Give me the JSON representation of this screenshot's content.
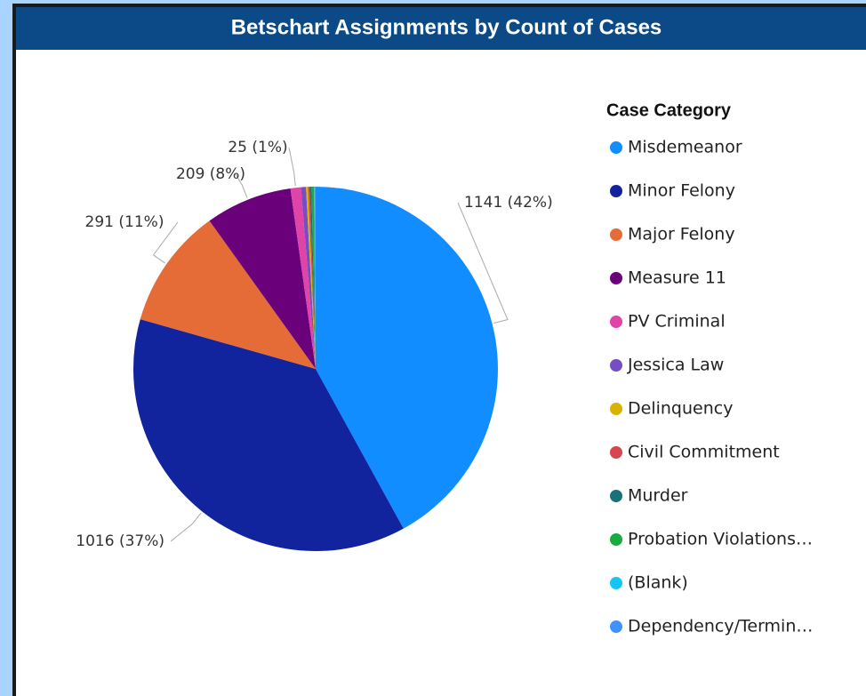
{
  "chart_data": {
    "type": "pie",
    "title": "Betschart Assignments by Count of Cases",
    "legend_title": "Case Category",
    "legend": "right",
    "categories": [
      "Misdemeanor",
      "Minor Felony",
      "Major Felony",
      "Measure 11",
      "PV Criminal",
      "Jessica Law",
      "Delinquency",
      "Civil Commitment",
      "Murder",
      "Probation Violations…",
      "(Blank)",
      "Dependency/Termin…"
    ],
    "values": [
      1141,
      1016,
      291,
      209,
      25,
      12,
      5,
      4,
      4,
      6,
      2,
      2
    ],
    "value_labels": [
      "1141 (42%)",
      "1016 (37%)",
      "291 (11%)",
      "209 (8%)",
      "25 (1%)",
      null,
      null,
      null,
      null,
      null,
      null,
      null
    ],
    "colors": [
      "#118DFF",
      "#12239E",
      "#E66C37",
      "#6B007B",
      "#E044A7",
      "#744EC2",
      "#D9B300",
      "#D64550",
      "#197278",
      "#1AAB40",
      "#15C6F4",
      "#4092FF"
    ]
  }
}
